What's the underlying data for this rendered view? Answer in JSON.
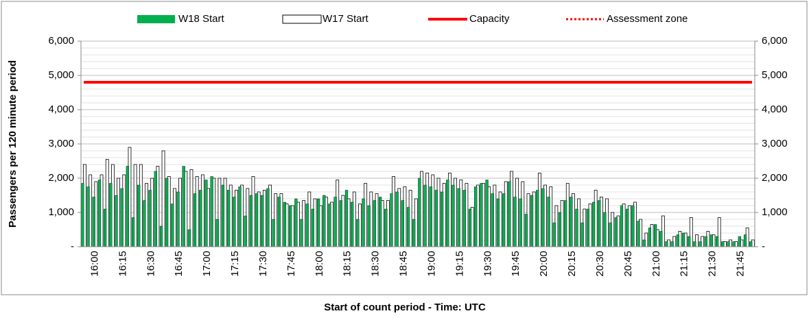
{
  "chart_data": {
    "type": "bar",
    "x_label": "Start of count period - Time: UTC",
    "y_label": "Passengers per 120 minute period",
    "categories": [
      null,
      null,
      "16:00",
      null,
      null,
      null,
      null,
      "16:15",
      null,
      null,
      null,
      null,
      "16:30",
      null,
      null,
      null,
      null,
      "16:45",
      null,
      null,
      null,
      null,
      "17:00",
      null,
      null,
      null,
      null,
      "17:15",
      null,
      null,
      null,
      null,
      "17:30",
      null,
      null,
      null,
      null,
      "17:45",
      null,
      null,
      null,
      null,
      "18:00",
      null,
      null,
      null,
      null,
      "18:15",
      null,
      null,
      null,
      null,
      "18:30",
      null,
      null,
      null,
      null,
      "18:45",
      null,
      null,
      null,
      null,
      "19:00",
      null,
      null,
      null,
      null,
      "19:15",
      null,
      null,
      null,
      null,
      "19:30",
      null,
      null,
      null,
      null,
      "19:45",
      null,
      null,
      null,
      null,
      "20:00",
      null,
      null,
      null,
      null,
      "20:15",
      null,
      null,
      null,
      null,
      "20:30",
      null,
      null,
      null,
      null,
      "20:45",
      null,
      null,
      null,
      null,
      "21:00",
      null,
      null,
      null,
      null,
      "21:15",
      null,
      null,
      null,
      null,
      "21:30",
      null,
      null,
      null,
      null,
      "21:45",
      null,
      null
    ],
    "series": [
      {
        "name": "W18 Start",
        "color": "#00b050",
        "values": [
          1850,
          1750,
          1450,
          1950,
          1100,
          1850,
          1500,
          1700,
          2350,
          850,
          1800,
          1350,
          1650,
          2200,
          600,
          2000,
          1250,
          1600,
          2350,
          500,
          1550,
          1650,
          1950,
          2050,
          800,
          1800,
          1650,
          1450,
          1750,
          900,
          1500,
          1550,
          1500,
          1700,
          800,
          1450,
          1300,
          1200,
          1400,
          800,
          1250,
          1100,
          1400,
          1500,
          1250,
          1450,
          1350,
          1650,
          1300,
          800,
          1400,
          1200,
          1350,
          1450,
          1100,
          1550,
          1600,
          1350,
          1150,
          800,
          2000,
          1800,
          1750,
          1650,
          1600,
          1950,
          1800,
          1700,
          1650,
          1100,
          1750,
          1850,
          1950,
          1550,
          1400,
          1550,
          1900,
          1450,
          1400,
          950,
          1500,
          1650,
          1700,
          1450,
          700,
          1000,
          1350,
          1450,
          1100,
          700,
          1100,
          1300,
          1350,
          1000,
          700,
          850,
          1200,
          1100,
          1200,
          750,
          200,
          550,
          650,
          450,
          150,
          150,
          350,
          400,
          300,
          150,
          150,
          300,
          350,
          300,
          150,
          150,
          150,
          300,
          350,
          150
        ]
      },
      {
        "name": "W17 Start",
        "color": "#ffffff",
        "values": [
          2400,
          2100,
          1900,
          2100,
          2550,
          2400,
          2000,
          2100,
          2900,
          2400,
          2400,
          1850,
          2000,
          2350,
          2800,
          2050,
          1700,
          2000,
          2200,
          2250,
          2050,
          2100,
          1700,
          2000,
          2000,
          2000,
          1800,
          1650,
          1800,
          1700,
          2050,
          1600,
          1650,
          1800,
          1550,
          1550,
          1250,
          1200,
          1300,
          1350,
          1600,
          1400,
          1200,
          1450,
          1300,
          1950,
          1500,
          1400,
          1600,
          1250,
          1850,
          1600,
          1550,
          1350,
          1350,
          2050,
          1700,
          1750,
          1650,
          1400,
          2200,
          2150,
          2100,
          2000,
          1850,
          2150,
          2000,
          1950,
          1850,
          1150,
          1800,
          1850,
          1750,
          1800,
          1600,
          1900,
          2200,
          2000,
          1900,
          1550,
          1600,
          2150,
          1800,
          1750,
          1200,
          1350,
          1850,
          1550,
          1400,
          1100,
          1250,
          1650,
          1450,
          1400,
          1000,
          900,
          1250,
          1200,
          1300,
          800,
          400,
          650,
          500,
          900,
          200,
          300,
          450,
          400,
          850,
          350,
          300,
          450,
          350,
          850,
          150,
          200,
          150,
          200,
          550,
          200
        ]
      }
    ],
    "capacity": {
      "name": "Capacity",
      "color": "#ff0000",
      "value": 4800
    },
    "assessment_zone": {
      "name": "Assessment zone",
      "color": "#ff0000"
    },
    "ylim": [
      0,
      6000
    ],
    "yticks": [
      {
        "value": 0,
        "label": "-"
      },
      {
        "value": 1000,
        "label": "1,000"
      },
      {
        "value": 2000,
        "label": "2,000"
      },
      {
        "value": 3000,
        "label": "3,000"
      },
      {
        "value": 4000,
        "label": "4,000"
      },
      {
        "value": 5000,
        "label": "5,000"
      },
      {
        "value": 6000,
        "label": "6,000"
      }
    ],
    "y2lim": [
      0,
      6000
    ],
    "y2ticks": [
      {
        "value": 0,
        "label": "-"
      },
      {
        "value": 1000,
        "label": "1,000"
      },
      {
        "value": 2000,
        "label": "2,000"
      },
      {
        "value": 3000,
        "label": "3,000"
      },
      {
        "value": 4000,
        "label": "4,000"
      },
      {
        "value": 5000,
        "label": "5,000"
      },
      {
        "value": 6000,
        "label": "6,000"
      }
    ],
    "grid": true,
    "minor_grid": 200
  }
}
